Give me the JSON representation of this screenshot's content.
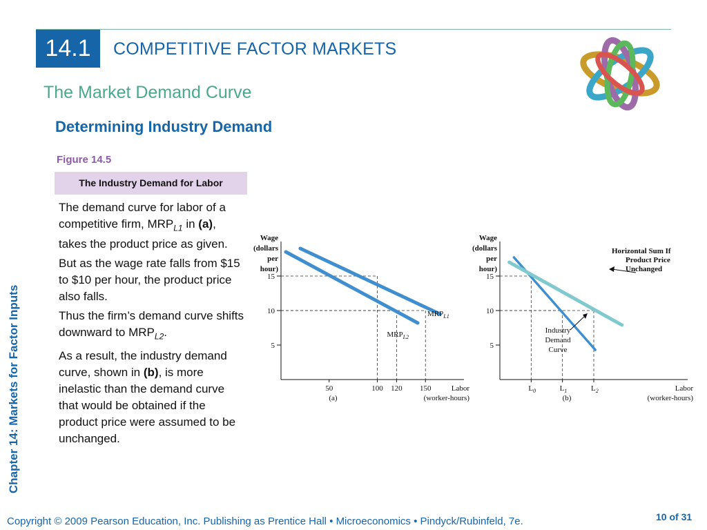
{
  "header": {
    "section_number": "14.1",
    "section_title": "COMPETITIVE FACTOR MARKETS",
    "subtitle": "The Market Demand Curve",
    "heading": "Determining Industry Demand"
  },
  "figure": {
    "label": "Figure 14.5",
    "title": "The Industry Demand for Labor"
  },
  "text": {
    "p1a": "The demand curve for labor of a competitive firm, MRP",
    "p1sub": "L1",
    "p1b": " in ",
    "p1bold": "(a)",
    "p1c": ", takes the product price as given.",
    "p2": "But as the wage rate falls from $15 to $10 per hour, the product price also falls.",
    "p3a": "Thus the firm’s demand curve shifts downward to MRP",
    "p3sub": "L2",
    "p3b": ".",
    "p4a": "As a result, the industry demand curve, shown in ",
    "p4bold": "(b)",
    "p4b": ", is more inelastic than the demand curve that would be obtained if the product price were assumed to be unchanged."
  },
  "sidebar": {
    "chapter": "Chapter 14: Markets for Factor Inputs"
  },
  "footer": {
    "copyright": "Copyright © 2009 Pearson Education, Inc. Publishing as Prentice Hall  •  Microeconomics  •  Pindyck/Rubinfeld, 7e.",
    "page": "10 of 31"
  },
  "colors": {
    "primary": "#1565a8",
    "accent_green": "#4aa88f",
    "figure_purple": "#8c5aa6",
    "curve_blue": "#3f8fd0",
    "curve_light": "#7fc9cf"
  },
  "chart_data": [
    {
      "type": "line",
      "panel_label": "(a)",
      "ylabel_lines": [
        "Wage",
        "(dollars",
        "per",
        "hour)"
      ],
      "xlabel_lines": [
        "Labor",
        "(worker-hours)"
      ],
      "ylim": [
        0,
        20
      ],
      "xlim": [
        0,
        190
      ],
      "yticks": [
        5,
        10,
        15
      ],
      "xticks": [
        50,
        100,
        120,
        150
      ],
      "series": [
        {
          "name": "MRP",
          "sub": "L1",
          "points": [
            [
              20,
              19
            ],
            [
              165,
              9.5
            ]
          ]
        },
        {
          "name": "MRP",
          "sub": "L2",
          "points": [
            [
              5,
              18.5
            ],
            [
              142,
              8.2
            ]
          ]
        }
      ],
      "guides": [
        [
          100,
          15
        ],
        [
          120,
          10
        ],
        [
          150,
          10
        ]
      ]
    },
    {
      "type": "line",
      "panel_label": "(b)",
      "ylabel_lines": [
        "Wage",
        "(dollars",
        "per",
        "hour)"
      ],
      "xlabel_lines": [
        "Labor",
        "(worker-hours)"
      ],
      "ylim": [
        0,
        20
      ],
      "xlim": [
        0,
        12
      ],
      "yticks": [
        5,
        10,
        15
      ],
      "xticks": [
        {
          "label": "L",
          "sub": "0",
          "value": 2
        },
        {
          "label": "L",
          "sub": "1",
          "value": 4
        },
        {
          "label": "L",
          "sub": "2",
          "value": 6
        }
      ],
      "series": [
        {
          "name": "Industry Demand Curve",
          "label_lines": [
            "Industry",
            "Demand",
            "Curve"
          ],
          "points": [
            [
              0.9,
              17.7
            ],
            [
              6.1,
              4.3
            ]
          ]
        },
        {
          "name": "Horizontal Sum If Product Price Unchanged",
          "label_lines": [
            "Horizontal Sum If",
            "Product Price",
            "Unchanged"
          ],
          "points": [
            [
              0.6,
              17.0
            ],
            [
              7.8,
              7.9
            ]
          ]
        }
      ],
      "guides": [
        [
          2,
          15
        ],
        [
          4,
          10
        ],
        [
          6,
          10
        ]
      ]
    }
  ]
}
